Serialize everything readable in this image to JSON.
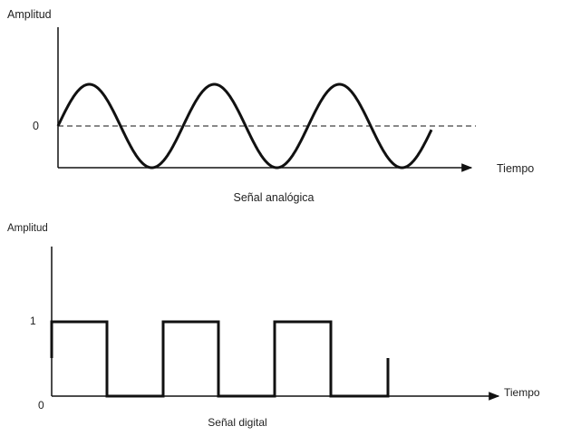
{
  "analog": {
    "y_axis_label": "Amplitud",
    "zero_label": "0",
    "x_axis_label": "Tiempo",
    "caption": "Señal analógica"
  },
  "digital": {
    "y_axis_label": "Amplitud",
    "one_label": "1",
    "zero_label": "0",
    "x_axis_label": "Tiempo",
    "caption": "Señal digital"
  },
  "colors": {
    "line": "#111111",
    "text": "#222222"
  }
}
